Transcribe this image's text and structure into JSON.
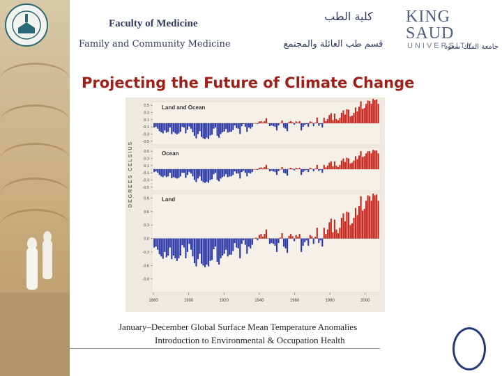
{
  "header": {
    "faculty_en": "Faculty of Medicine",
    "department_en": "Family and Community Medicine",
    "faculty_ar": "كلية الطب",
    "department_ar": "قسم طب العائلة والمجتمع"
  },
  "university": {
    "logo_line1": "KING SAUD",
    "logo_line2": "UNIVERSITY",
    "name_ar": "جامعة الملك سعود"
  },
  "slide": {
    "title": "Projecting the Future of Climate Change",
    "caption": "January–December Global Surface Mean Temperature Anomalies",
    "footer": "Introduction to Environmental & Occupation Health"
  },
  "colors": {
    "title": "#9e2018",
    "header_text": "#2e3a60",
    "bar_positive": "#c8281e",
    "bar_negative": "#2b3aa8",
    "chart_bg": "#efeae0"
  },
  "chart_data": {
    "type": "bar",
    "ylabel": "DEGREES CELSIUS",
    "x_ticks": [
      "1880",
      "1900",
      "1920",
      "1940",
      "1960",
      "1980",
      "2000"
    ],
    "xlim": [
      1880,
      2008
    ],
    "panels": [
      {
        "name": "Land and Ocean",
        "ylim": [
          -0.6,
          0.6
        ],
        "y_ticks": [
          "0.5",
          "0.3",
          "0.1",
          "-0.1",
          "-0.3",
          "-0.5"
        ],
        "values": [
          -0.12,
          -0.1,
          -0.15,
          -0.22,
          -0.25,
          -0.28,
          -0.2,
          -0.26,
          -0.24,
          -0.12,
          -0.3,
          -0.24,
          -0.28,
          -0.31,
          -0.28,
          -0.24,
          -0.1,
          -0.12,
          -0.28,
          -0.18,
          -0.09,
          -0.15,
          -0.25,
          -0.35,
          -0.42,
          -0.3,
          -0.22,
          -0.38,
          -0.42,
          -0.44,
          -0.4,
          -0.44,
          -0.34,
          -0.32,
          -0.15,
          -0.12,
          -0.35,
          -0.4,
          -0.3,
          -0.25,
          -0.23,
          -0.16,
          -0.26,
          -0.24,
          -0.24,
          -0.19,
          -0.06,
          -0.14,
          -0.15,
          -0.3,
          -0.08,
          -0.02,
          -0.1,
          -0.24,
          -0.12,
          -0.15,
          -0.1,
          0.0,
          0.01,
          -0.02,
          0.05,
          0.06,
          0.02,
          0.06,
          0.14,
          0.0,
          -0.08,
          -0.06,
          -0.08,
          -0.1,
          -0.2,
          -0.06,
          0.01,
          0.08,
          -0.12,
          -0.15,
          -0.22,
          0.04,
          0.06,
          0.03,
          -0.04,
          0.05,
          0.02,
          0.06,
          -0.2,
          -0.1,
          -0.05,
          -0.02,
          -0.1,
          0.05,
          0.03,
          -0.08,
          0.02,
          0.16,
          -0.07,
          -0.02,
          -0.12,
          0.15,
          0.06,
          0.12,
          0.23,
          0.28,
          0.09,
          0.27,
          0.12,
          0.08,
          0.15,
          0.29,
          0.36,
          0.24,
          0.39,
          0.38,
          0.19,
          0.21,
          0.29,
          0.44,
          0.33,
          0.46,
          0.61,
          0.4,
          0.42,
          0.54,
          0.63,
          0.62,
          0.54,
          0.68,
          0.64,
          0.66,
          0.54
        ]
      },
      {
        "name": "Ocean",
        "ylim": [
          -0.6,
          0.6
        ],
        "y_ticks": [
          "0.5",
          "0.3",
          "0.1",
          "-0.1",
          "-0.3",
          "-0.5"
        ],
        "values": [
          -0.08,
          -0.06,
          -0.1,
          -0.16,
          -0.2,
          -0.22,
          -0.18,
          -0.22,
          -0.2,
          -0.1,
          -0.25,
          -0.22,
          -0.24,
          -0.26,
          -0.24,
          -0.2,
          -0.1,
          -0.1,
          -0.24,
          -0.16,
          -0.08,
          -0.12,
          -0.2,
          -0.3,
          -0.36,
          -0.26,
          -0.2,
          -0.32,
          -0.36,
          -0.38,
          -0.35,
          -0.38,
          -0.3,
          -0.28,
          -0.14,
          -0.1,
          -0.3,
          -0.34,
          -0.26,
          -0.22,
          -0.2,
          -0.14,
          -0.22,
          -0.2,
          -0.2,
          -0.16,
          -0.06,
          -0.12,
          -0.12,
          -0.26,
          -0.08,
          -0.04,
          -0.1,
          -0.2,
          -0.1,
          -0.12,
          -0.08,
          0.0,
          0.0,
          -0.02,
          0.04,
          0.05,
          0.02,
          0.06,
          0.12,
          0.02,
          -0.06,
          -0.04,
          -0.06,
          -0.08,
          -0.16,
          -0.05,
          0.0,
          0.06,
          -0.1,
          -0.12,
          -0.18,
          0.02,
          0.04,
          0.02,
          -0.03,
          0.04,
          0.02,
          0.04,
          -0.16,
          -0.08,
          -0.04,
          -0.02,
          -0.08,
          0.04,
          0.02,
          -0.06,
          0.02,
          0.12,
          -0.05,
          -0.02,
          -0.1,
          0.12,
          0.05,
          0.1,
          0.18,
          0.22,
          0.08,
          0.22,
          0.1,
          0.06,
          0.12,
          0.24,
          0.3,
          0.2,
          0.32,
          0.3,
          0.16,
          0.18,
          0.24,
          0.36,
          0.28,
          0.38,
          0.5,
          0.34,
          0.36,
          0.44,
          0.5,
          0.5,
          0.44,
          0.54,
          0.52,
          0.52,
          0.44
        ]
      },
      {
        "name": "Land",
        "ylim": [
          -1.2,
          1.0
        ],
        "y_ticks": [
          "0.9",
          "0.6",
          "0.3",
          "0.0",
          "-0.3",
          "-0.6",
          "-0.9"
        ],
        "values": [
          -0.2,
          -0.18,
          -0.25,
          -0.35,
          -0.4,
          -0.45,
          -0.3,
          -0.42,
          -0.38,
          -0.2,
          -0.46,
          -0.38,
          -0.44,
          -0.5,
          -0.44,
          -0.38,
          -0.15,
          -0.2,
          -0.44,
          -0.3,
          -0.12,
          -0.25,
          -0.4,
          -0.55,
          -0.62,
          -0.46,
          -0.34,
          -0.56,
          -0.6,
          -0.64,
          -0.58,
          -0.62,
          -0.5,
          -0.48,
          -0.24,
          -0.18,
          -0.52,
          -0.58,
          -0.44,
          -0.38,
          -0.34,
          -0.25,
          -0.4,
          -0.36,
          -0.36,
          -0.28,
          -0.1,
          -0.2,
          -0.22,
          -0.44,
          -0.12,
          -0.04,
          -0.14,
          -0.34,
          -0.18,
          -0.22,
          -0.14,
          0.0,
          0.02,
          -0.04,
          0.08,
          0.1,
          0.04,
          0.1,
          0.2,
          0.0,
          -0.12,
          -0.1,
          -0.12,
          -0.16,
          -0.3,
          -0.1,
          0.02,
          0.12,
          -0.18,
          -0.22,
          -0.32,
          0.06,
          0.1,
          0.05,
          -0.06,
          0.08,
          0.04,
          0.1,
          -0.3,
          -0.16,
          -0.08,
          -0.04,
          -0.16,
          0.08,
          0.05,
          -0.12,
          0.04,
          0.24,
          -0.1,
          -0.04,
          -0.18,
          0.24,
          0.1,
          0.2,
          0.36,
          0.44,
          0.14,
          0.42,
          0.2,
          0.12,
          0.24,
          0.46,
          0.56,
          0.38,
          0.6,
          0.58,
          0.3,
          0.34,
          0.46,
          0.68,
          0.52,
          0.72,
          0.94,
          0.62,
          0.66,
          0.84,
          0.96,
          0.94,
          0.84,
          1.0,
          0.96,
          0.98,
          0.84
        ]
      }
    ]
  }
}
